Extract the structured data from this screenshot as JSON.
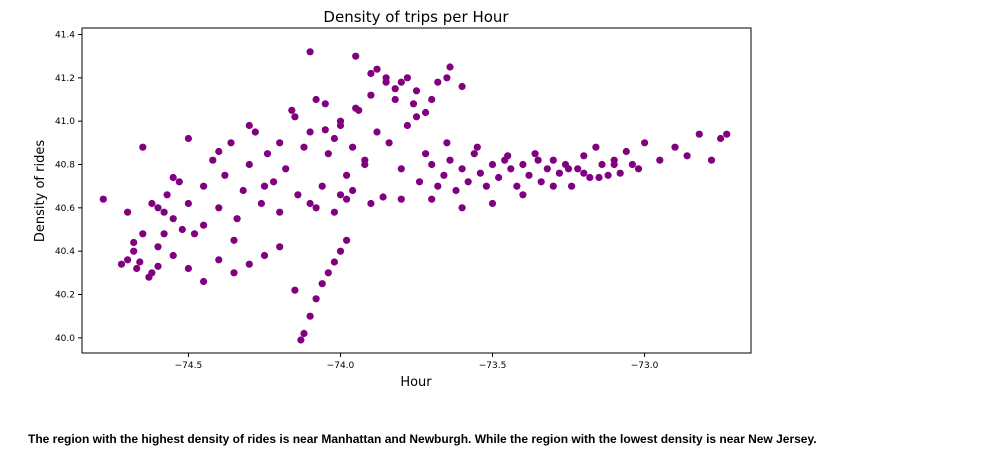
{
  "chart_data": {
    "type": "scatter",
    "title": "Density of trips per Hour",
    "xlabel": "Hour",
    "ylabel": "Density of rides",
    "xlim": [
      -74.85,
      -72.65
    ],
    "ylim": [
      39.93,
      41.43
    ],
    "xticks": [
      -74.5,
      -74.0,
      -73.5,
      -73.0
    ],
    "xtick_labels": [
      "−74.5",
      "−74.0",
      "−73.5",
      "−73.0"
    ],
    "yticks": [
      40.0,
      40.2,
      40.4,
      40.6,
      40.8,
      41.0,
      41.2,
      41.4
    ],
    "ytick_labels": [
      "40.0",
      "40.2",
      "40.4",
      "40.6",
      "40.8",
      "41.0",
      "41.2",
      "41.4"
    ],
    "color": "#800080",
    "grid": false,
    "series": [
      {
        "x": [
          -74.78,
          -74.68,
          -74.66,
          -74.62,
          -74.6,
          -74.58,
          -74.55,
          -74.52,
          -74.5,
          -74.48,
          -74.45,
          -74.42,
          -74.4,
          -74.38,
          -74.36,
          -74.34,
          -74.32,
          -74.3,
          -74.28,
          -74.26,
          -74.24,
          -74.22,
          -74.2,
          -74.18,
          -74.16,
          -74.14,
          -74.12,
          -74.1,
          -74.08,
          -74.06,
          -74.04,
          -74.02,
          -74.0,
          -73.98,
          -73.96,
          -73.94,
          -73.92,
          -73.9,
          -73.88,
          -73.86,
          -73.84,
          -73.82,
          -73.8,
          -73.78,
          -73.76,
          -73.74,
          -73.72,
          -73.7,
          -73.68,
          -73.66,
          -73.64,
          -73.62,
          -73.6,
          -73.58,
          -73.56,
          -73.54,
          -73.52,
          -73.5,
          -73.48,
          -73.46,
          -73.44,
          -73.42,
          -73.4,
          -73.38,
          -73.36,
          -73.34,
          -73.32,
          -73.3,
          -73.28,
          -73.26,
          -73.24,
          -73.22,
          -73.2,
          -73.18,
          -73.16,
          -73.14,
          -73.12,
          -73.1,
          -73.08,
          -73.06,
          -73.04,
          -73.02,
          -73.0,
          -72.95,
          -72.9,
          -72.86,
          -72.82,
          -72.78,
          -72.75,
          -72.73,
          -74.7,
          -74.65,
          -74.62,
          -74.58,
          -74.55,
          -74.5,
          -74.45,
          -74.4,
          -74.35,
          -74.3,
          -74.25,
          -74.2,
          -74.15,
          -74.1,
          -74.05,
          -74.0,
          -73.95,
          -73.9,
          -73.85,
          -73.8,
          -73.75,
          -73.7,
          -73.65,
          -73.6,
          -73.55,
          -73.5,
          -73.45,
          -73.4,
          -73.35,
          -73.3,
          -73.25,
          -73.2,
          -73.15,
          -73.1,
          -74.12,
          -74.1,
          -74.08,
          -74.06,
          -74.04,
          -74.02,
          -74.0,
          -73.98,
          -74.13,
          -74.15,
          -74.2,
          -74.25,
          -74.3,
          -74.35,
          -74.4,
          -74.45,
          -74.5,
          -74.55,
          -74.6,
          -74.65,
          -74.68,
          -74.7,
          -74.72,
          -74.67,
          -74.63,
          -74.6,
          -74.57,
          -74.53,
          -73.9,
          -73.85,
          -73.8,
          -73.75,
          -73.7,
          -73.65,
          -73.6,
          -73.95,
          -73.88,
          -73.82,
          -73.78,
          -73.72,
          -73.68,
          -73.64,
          -74.1,
          -74.05,
          -74.0,
          -73.92,
          -74.08,
          -74.02,
          -73.98,
          -73.96
        ],
        "y": [
          40.64,
          40.4,
          40.35,
          40.3,
          40.33,
          40.58,
          40.55,
          40.5,
          40.62,
          40.48,
          40.7,
          40.82,
          40.6,
          40.75,
          40.9,
          40.55,
          40.68,
          40.8,
          40.95,
          40.62,
          40.85,
          40.72,
          40.9,
          40.78,
          41.05,
          40.66,
          40.88,
          40.95,
          41.1,
          40.7,
          40.85,
          40.92,
          41.0,
          40.75,
          40.88,
          41.05,
          40.8,
          41.12,
          40.95,
          40.65,
          40.9,
          41.15,
          40.78,
          40.98,
          41.08,
          40.72,
          40.85,
          40.8,
          40.7,
          40.75,
          40.82,
          40.68,
          40.78,
          40.72,
          40.85,
          40.76,
          40.7,
          40.8,
          40.74,
          40.82,
          40.78,
          40.7,
          40.8,
          40.75,
          40.85,
          40.72,
          40.78,
          40.82,
          40.76,
          40.8,
          40.7,
          40.78,
          40.84,
          40.74,
          40.88,
          40.8,
          40.75,
          40.82,
          40.76,
          40.86,
          40.8,
          40.78,
          40.9,
          40.82,
          40.88,
          40.84,
          40.94,
          40.82,
          40.92,
          40.94,
          40.58,
          40.88,
          40.62,
          40.48,
          40.74,
          40.92,
          40.52,
          40.86,
          40.45,
          40.98,
          40.7,
          40.58,
          41.02,
          40.62,
          40.96,
          40.66,
          41.06,
          40.62,
          41.18,
          40.64,
          41.02,
          40.64,
          40.9,
          40.6,
          40.88,
          40.62,
          40.84,
          40.66,
          40.82,
          40.7,
          40.78,
          40.76,
          40.74,
          40.8,
          40.02,
          40.1,
          40.18,
          40.25,
          40.3,
          40.35,
          40.4,
          40.45,
          39.99,
          40.22,
          40.42,
          40.38,
          40.34,
          40.3,
          40.36,
          40.26,
          40.32,
          40.38,
          40.42,
          40.48,
          40.44,
          40.36,
          40.34,
          40.32,
          40.28,
          40.6,
          40.66,
          40.72,
          41.22,
          41.2,
          41.18,
          41.14,
          41.1,
          41.2,
          41.16,
          41.3,
          41.24,
          41.1,
          41.2,
          41.04,
          41.18,
          41.25,
          41.32,
          41.08,
          40.98,
          40.82,
          40.6,
          40.58,
          40.64,
          40.68
        ]
      }
    ]
  },
  "caption": "The region with the highest density of rides is near Manhattan and Newburgh. While the region with the lowest density is near New Jersey."
}
